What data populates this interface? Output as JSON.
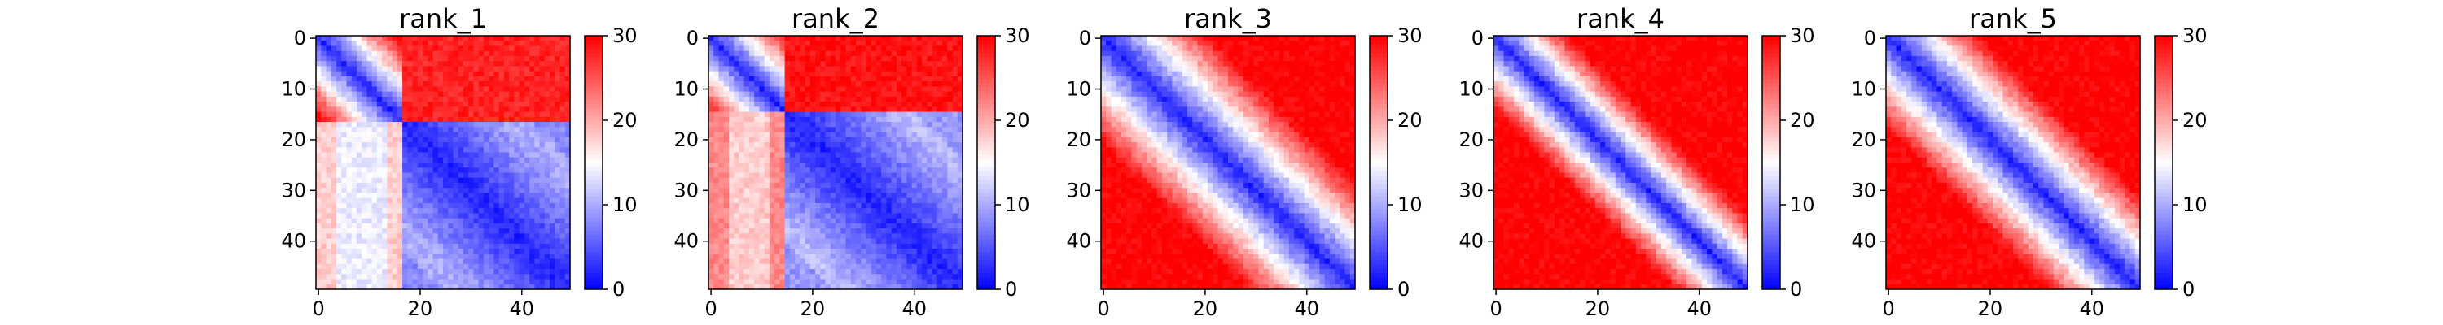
{
  "chart_data": [
    {
      "type": "heatmap",
      "title": "rank_1",
      "size": 50,
      "xlim": [
        0,
        49
      ],
      "ylim": [
        49,
        0
      ],
      "x_ticks": [
        0,
        20,
        40
      ],
      "y_ticks": [
        0,
        10,
        20,
        30,
        40
      ],
      "colorbar": {
        "range": [
          0,
          30
        ],
        "ticks": [
          0,
          10,
          20,
          30
        ],
        "colormap": "bwr"
      },
      "matrix_model": {
        "kind": "two-domain",
        "boundary": 17,
        "far_value": 28,
        "cross_value": 18,
        "inner_value": 10
      }
    },
    {
      "type": "heatmap",
      "title": "rank_2",
      "size": 50,
      "xlim": [
        0,
        49
      ],
      "ylim": [
        49,
        0
      ],
      "x_ticks": [
        0,
        20,
        40
      ],
      "y_ticks": [
        0,
        10,
        20,
        30,
        40
      ],
      "colorbar": {
        "range": [
          0,
          30
        ],
        "ticks": [
          0,
          10,
          20,
          30
        ],
        "colormap": "bwr"
      },
      "matrix_model": {
        "kind": "two-domain",
        "boundary": 15,
        "far_value": 29,
        "cross_value": 22,
        "inner_value": 11
      }
    },
    {
      "type": "heatmap",
      "title": "rank_3",
      "size": 50,
      "xlim": [
        0,
        49
      ],
      "ylim": [
        49,
        0
      ],
      "x_ticks": [
        0,
        20,
        40
      ],
      "y_ticks": [
        0,
        10,
        20,
        30,
        40
      ],
      "colorbar": {
        "range": [
          0,
          30
        ],
        "ticks": [
          0,
          10,
          20,
          30
        ],
        "colormap": "bwr"
      },
      "matrix_model": {
        "kind": "distance",
        "diag_value": 2,
        "slope": 1.3,
        "cap": 30
      }
    },
    {
      "type": "heatmap",
      "title": "rank_4",
      "size": 50,
      "xlim": [
        0,
        49
      ],
      "ylim": [
        49,
        0
      ],
      "x_ticks": [
        0,
        20,
        40
      ],
      "y_ticks": [
        0,
        10,
        20,
        30,
        40
      ],
      "colorbar": {
        "range": [
          0,
          30
        ],
        "ticks": [
          0,
          10,
          20,
          30
        ],
        "colormap": "bwr"
      },
      "matrix_model": {
        "kind": "distance",
        "diag_value": 2,
        "slope": 1.9,
        "cap": 30
      }
    },
    {
      "type": "heatmap",
      "title": "rank_5",
      "size": 50,
      "xlim": [
        0,
        49
      ],
      "ylim": [
        49,
        0
      ],
      "x_ticks": [
        0,
        20,
        40
      ],
      "y_ticks": [
        0,
        10,
        20,
        30,
        40
      ],
      "colorbar": {
        "range": [
          0,
          30
        ],
        "ticks": [
          0,
          10,
          20,
          30
        ],
        "colormap": "bwr"
      },
      "matrix_model": {
        "kind": "distance",
        "diag_value": 2,
        "slope": 1.5,
        "cap": 30
      }
    }
  ]
}
